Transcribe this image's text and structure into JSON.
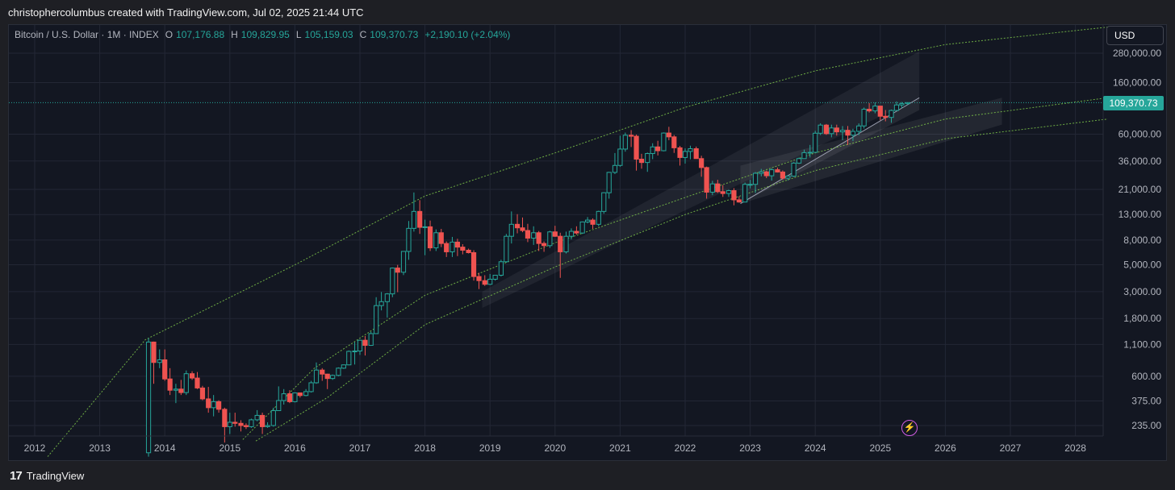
{
  "header": {
    "attribution": "christophercolumbus created with TradingView.com, Jul 02, 2025 21:44 UTC"
  },
  "legend": {
    "symbol": "Bitcoin / U.S. Dollar · 1M · INDEX",
    "open_label": "O",
    "open": "107,176.88",
    "high_label": "H",
    "high": "109,829.95",
    "low_label": "L",
    "low": "105,159.03",
    "close_label": "C",
    "close": "109,370.73",
    "change": "+2,190.10 (+2.04%)"
  },
  "currency": "USD",
  "last_price_label": "109,370.73",
  "footer": {
    "brand": "TradingView",
    "logo": "17"
  },
  "colors": {
    "up": "#26a69a",
    "down": "#ef5350",
    "curve": "#7ec74a",
    "background": "#131722",
    "grid": "#232735"
  },
  "icons": {
    "replay": "lightning-bolt-icon"
  },
  "chart_data": {
    "type": "candlestick",
    "scale": "log",
    "grid": true,
    "x_tick_labels": [
      "2012",
      "2013",
      "2014",
      "2015",
      "2016",
      "2017",
      "2018",
      "2019",
      "2020",
      "2021",
      "2022",
      "2023",
      "2024",
      "2025",
      "2026",
      "2027",
      "2028"
    ],
    "y_tick_labels": [
      "280,000.00",
      "160,000.00",
      "60,000.00",
      "36,000.00",
      "21,000.00",
      "13,000.00",
      "8,000.00",
      "5,000.00",
      "3,000.00",
      "1,800.00",
      "1,100.00",
      "600.00",
      "375.00",
      "235.00"
    ],
    "y_tick_values": [
      280000,
      160000,
      60000,
      36000,
      21000,
      13000,
      8000,
      5000,
      3000,
      1800,
      1100,
      600,
      375,
      235
    ],
    "ylim": [
      175,
      480000
    ],
    "xlim": [
      2011.8,
      2028.8
    ],
    "last_price": 109370.73,
    "candles": [
      {
        "t": 2013.75,
        "o": 140,
        "c": 1150,
        "h": 1240,
        "l": 130
      },
      {
        "t": 2013.83,
        "o": 1150,
        "c": 780,
        "h": 1160,
        "l": 520
      },
      {
        "t": 2013.92,
        "o": 780,
        "c": 820,
        "h": 1000,
        "l": 700
      },
      {
        "t": 2014.0,
        "o": 820,
        "c": 570,
        "h": 1000,
        "l": 550
      },
      {
        "t": 2014.08,
        "o": 570,
        "c": 460,
        "h": 700,
        "l": 420
      },
      {
        "t": 2014.17,
        "o": 460,
        "c": 470,
        "h": 520,
        "l": 360
      },
      {
        "t": 2014.25,
        "o": 470,
        "c": 440,
        "h": 560,
        "l": 420
      },
      {
        "t": 2014.33,
        "o": 440,
        "c": 630,
        "h": 670,
        "l": 420
      },
      {
        "t": 2014.42,
        "o": 630,
        "c": 580,
        "h": 660,
        "l": 560
      },
      {
        "t": 2014.5,
        "o": 580,
        "c": 480,
        "h": 650,
        "l": 470
      },
      {
        "t": 2014.58,
        "o": 480,
        "c": 390,
        "h": 500,
        "l": 380
      },
      {
        "t": 2014.67,
        "o": 390,
        "c": 330,
        "h": 490,
        "l": 300
      },
      {
        "t": 2014.75,
        "o": 330,
        "c": 370,
        "h": 420,
        "l": 280
      },
      {
        "t": 2014.83,
        "o": 370,
        "c": 320,
        "h": 380,
        "l": 300
      },
      {
        "t": 2014.92,
        "o": 320,
        "c": 230,
        "h": 330,
        "l": 170
      },
      {
        "t": 2015.0,
        "o": 230,
        "c": 250,
        "h": 300,
        "l": 200
      },
      {
        "t": 2015.08,
        "o": 250,
        "c": 245,
        "h": 300,
        "l": 230
      },
      {
        "t": 2015.17,
        "o": 245,
        "c": 235,
        "h": 260,
        "l": 210
      },
      {
        "t": 2015.25,
        "o": 235,
        "c": 230,
        "h": 245,
        "l": 220
      },
      {
        "t": 2015.33,
        "o": 230,
        "c": 262,
        "h": 268,
        "l": 225
      },
      {
        "t": 2015.42,
        "o": 262,
        "c": 285,
        "h": 315,
        "l": 255
      },
      {
        "t": 2015.5,
        "o": 285,
        "c": 230,
        "h": 300,
        "l": 200
      },
      {
        "t": 2015.58,
        "o": 230,
        "c": 235,
        "h": 250,
        "l": 225
      },
      {
        "t": 2015.67,
        "o": 235,
        "c": 312,
        "h": 330,
        "l": 230
      },
      {
        "t": 2015.75,
        "o": 312,
        "c": 378,
        "h": 495,
        "l": 310
      },
      {
        "t": 2015.83,
        "o": 378,
        "c": 430,
        "h": 470,
        "l": 350
      },
      {
        "t": 2015.92,
        "o": 430,
        "c": 370,
        "h": 460,
        "l": 360
      },
      {
        "t": 2016.0,
        "o": 370,
        "c": 437,
        "h": 440,
        "l": 365
      },
      {
        "t": 2016.08,
        "o": 437,
        "c": 416,
        "h": 440,
        "l": 400
      },
      {
        "t": 2016.17,
        "o": 416,
        "c": 448,
        "h": 470,
        "l": 410
      },
      {
        "t": 2016.25,
        "o": 448,
        "c": 530,
        "h": 550,
        "l": 440
      },
      {
        "t": 2016.33,
        "o": 530,
        "c": 675,
        "h": 780,
        "l": 520
      },
      {
        "t": 2016.42,
        "o": 675,
        "c": 625,
        "h": 700,
        "l": 550
      },
      {
        "t": 2016.5,
        "o": 625,
        "c": 575,
        "h": 630,
        "l": 470
      },
      {
        "t": 2016.58,
        "o": 575,
        "c": 610,
        "h": 620,
        "l": 560
      },
      {
        "t": 2016.67,
        "o": 610,
        "c": 700,
        "h": 710,
        "l": 600
      },
      {
        "t": 2016.75,
        "o": 700,
        "c": 745,
        "h": 750,
        "l": 690
      },
      {
        "t": 2016.83,
        "o": 745,
        "c": 963,
        "h": 980,
        "l": 740
      },
      {
        "t": 2016.92,
        "o": 963,
        "c": 970,
        "h": 1150,
        "l": 750
      },
      {
        "t": 2017.0,
        "o": 970,
        "c": 1190,
        "h": 1200,
        "l": 900
      },
      {
        "t": 2017.08,
        "o": 1190,
        "c": 1080,
        "h": 1290,
        "l": 890
      },
      {
        "t": 2017.17,
        "o": 1080,
        "c": 1350,
        "h": 1400,
        "l": 1070
      },
      {
        "t": 2017.25,
        "o": 1350,
        "c": 2300,
        "h": 2700,
        "l": 1350
      },
      {
        "t": 2017.33,
        "o": 2300,
        "c": 2480,
        "h": 2980,
        "l": 2100
      },
      {
        "t": 2017.42,
        "o": 2480,
        "c": 2875,
        "h": 2920,
        "l": 1830
      },
      {
        "t": 2017.5,
        "o": 2875,
        "c": 4700,
        "h": 4750,
        "l": 2700
      },
      {
        "t": 2017.58,
        "o": 4700,
        "c": 4340,
        "h": 4990,
        "l": 2970
      },
      {
        "t": 2017.67,
        "o": 4340,
        "c": 6450,
        "h": 6470,
        "l": 4110
      },
      {
        "t": 2017.75,
        "o": 6450,
        "c": 10000,
        "h": 11500,
        "l": 5500
      },
      {
        "t": 2017.83,
        "o": 10000,
        "c": 13800,
        "h": 19800,
        "l": 9400
      },
      {
        "t": 2017.92,
        "o": 13800,
        "c": 10200,
        "h": 17100,
        "l": 9000
      },
      {
        "t": 2018.0,
        "o": 10200,
        "c": 10300,
        "h": 11800,
        "l": 6000
      },
      {
        "t": 2018.08,
        "o": 10300,
        "c": 6900,
        "h": 11600,
        "l": 6500
      },
      {
        "t": 2018.17,
        "o": 6900,
        "c": 9200,
        "h": 9800,
        "l": 6500
      },
      {
        "t": 2018.25,
        "o": 9200,
        "c": 7500,
        "h": 9900,
        "l": 7000
      },
      {
        "t": 2018.33,
        "o": 7500,
        "c": 6400,
        "h": 7800,
        "l": 5800
      },
      {
        "t": 2018.42,
        "o": 6400,
        "c": 7700,
        "h": 8500,
        "l": 5800
      },
      {
        "t": 2018.5,
        "o": 7700,
        "c": 7000,
        "h": 8200,
        "l": 5900
      },
      {
        "t": 2018.58,
        "o": 7000,
        "c": 6600,
        "h": 7400,
        "l": 6100
      },
      {
        "t": 2018.67,
        "o": 6600,
        "c": 6300,
        "h": 6800,
        "l": 6200
      },
      {
        "t": 2018.75,
        "o": 6300,
        "c": 4000,
        "h": 6600,
        "l": 3700
      },
      {
        "t": 2018.83,
        "o": 4000,
        "c": 3700,
        "h": 4300,
        "l": 3150
      },
      {
        "t": 2018.92,
        "o": 3700,
        "c": 3450,
        "h": 4100,
        "l": 3350
      },
      {
        "t": 2019.0,
        "o": 3450,
        "c": 3800,
        "h": 4200,
        "l": 3400
      },
      {
        "t": 2019.08,
        "o": 3800,
        "c": 4100,
        "h": 4100,
        "l": 3700
      },
      {
        "t": 2019.17,
        "o": 4100,
        "c": 5300,
        "h": 5500,
        "l": 4000
      },
      {
        "t": 2019.25,
        "o": 5300,
        "c": 8600,
        "h": 9000,
        "l": 5200
      },
      {
        "t": 2019.33,
        "o": 8600,
        "c": 10800,
        "h": 13800,
        "l": 7500
      },
      {
        "t": 2019.42,
        "o": 10800,
        "c": 10100,
        "h": 13100,
        "l": 9100
      },
      {
        "t": 2019.5,
        "o": 10100,
        "c": 9600,
        "h": 12300,
        "l": 9300
      },
      {
        "t": 2019.58,
        "o": 9600,
        "c": 8300,
        "h": 10900,
        "l": 7700
      },
      {
        "t": 2019.67,
        "o": 8300,
        "c": 9200,
        "h": 10400,
        "l": 7300
      },
      {
        "t": 2019.75,
        "o": 9200,
        "c": 7500,
        "h": 9500,
        "l": 6500
      },
      {
        "t": 2019.83,
        "o": 7500,
        "c": 7200,
        "h": 7800,
        "l": 6400
      },
      {
        "t": 2019.92,
        "o": 7200,
        "c": 9350,
        "h": 9550,
        "l": 6900
      },
      {
        "t": 2020.0,
        "o": 9350,
        "c": 8600,
        "h": 10500,
        "l": 8500
      },
      {
        "t": 2020.08,
        "o": 8600,
        "c": 6400,
        "h": 9200,
        "l": 3900
      },
      {
        "t": 2020.17,
        "o": 6400,
        "c": 8600,
        "h": 9400,
        "l": 6200
      },
      {
        "t": 2020.25,
        "o": 8600,
        "c": 9450,
        "h": 10000,
        "l": 8100
      },
      {
        "t": 2020.33,
        "o": 9450,
        "c": 9150,
        "h": 10400,
        "l": 8900
      },
      {
        "t": 2020.42,
        "o": 9150,
        "c": 11300,
        "h": 11400,
        "l": 9000
      },
      {
        "t": 2020.5,
        "o": 11300,
        "c": 11700,
        "h": 12400,
        "l": 11000
      },
      {
        "t": 2020.58,
        "o": 11700,
        "c": 10800,
        "h": 12100,
        "l": 9900
      },
      {
        "t": 2020.67,
        "o": 10800,
        "c": 13800,
        "h": 14000,
        "l": 10400
      },
      {
        "t": 2020.75,
        "o": 13800,
        "c": 19700,
        "h": 19900,
        "l": 13200
      },
      {
        "t": 2020.83,
        "o": 19700,
        "c": 29000,
        "h": 29300,
        "l": 17600
      },
      {
        "t": 2020.92,
        "o": 29000,
        "c": 33100,
        "h": 41900,
        "l": 28100
      },
      {
        "t": 2021.0,
        "o": 33100,
        "c": 45200,
        "h": 58300,
        "l": 32300
      },
      {
        "t": 2021.08,
        "o": 45200,
        "c": 58800,
        "h": 61800,
        "l": 43000
      },
      {
        "t": 2021.17,
        "o": 58800,
        "c": 57700,
        "h": 64800,
        "l": 47000
      },
      {
        "t": 2021.25,
        "o": 57700,
        "c": 37300,
        "h": 59500,
        "l": 30000
      },
      {
        "t": 2021.33,
        "o": 37300,
        "c": 35000,
        "h": 41300,
        "l": 31100
      },
      {
        "t": 2021.42,
        "o": 35000,
        "c": 41500,
        "h": 42300,
        "l": 29300
      },
      {
        "t": 2021.5,
        "o": 41500,
        "c": 47100,
        "h": 50500,
        "l": 37300
      },
      {
        "t": 2021.58,
        "o": 47100,
        "c": 43800,
        "h": 52900,
        "l": 40000
      },
      {
        "t": 2021.67,
        "o": 43800,
        "c": 61300,
        "h": 62000,
        "l": 43300
      },
      {
        "t": 2021.75,
        "o": 61300,
        "c": 57000,
        "h": 69000,
        "l": 53500
      },
      {
        "t": 2021.83,
        "o": 57000,
        "c": 46300,
        "h": 59000,
        "l": 42000
      },
      {
        "t": 2021.92,
        "o": 46300,
        "c": 38500,
        "h": 48000,
        "l": 33000
      },
      {
        "t": 2022.0,
        "o": 38500,
        "c": 43200,
        "h": 45800,
        "l": 34300
      },
      {
        "t": 2022.08,
        "o": 43200,
        "c": 45500,
        "h": 48200,
        "l": 37200
      },
      {
        "t": 2022.17,
        "o": 45500,
        "c": 37700,
        "h": 47400,
        "l": 37600
      },
      {
        "t": 2022.25,
        "o": 37700,
        "c": 31800,
        "h": 39800,
        "l": 26700
      },
      {
        "t": 2022.33,
        "o": 31800,
        "c": 19900,
        "h": 32400,
        "l": 17600
      },
      {
        "t": 2022.42,
        "o": 19900,
        "c": 23300,
        "h": 24700,
        "l": 18800
      },
      {
        "t": 2022.5,
        "o": 23300,
        "c": 20100,
        "h": 25200,
        "l": 19600
      },
      {
        "t": 2022.58,
        "o": 20100,
        "c": 19400,
        "h": 22800,
        "l": 18200
      },
      {
        "t": 2022.67,
        "o": 19400,
        "c": 20500,
        "h": 20900,
        "l": 18200
      },
      {
        "t": 2022.75,
        "o": 20500,
        "c": 17200,
        "h": 21500,
        "l": 15500
      },
      {
        "t": 2022.83,
        "o": 17200,
        "c": 16500,
        "h": 18400,
        "l": 16300
      },
      {
        "t": 2022.92,
        "o": 16500,
        "c": 23100,
        "h": 23900,
        "l": 16500
      },
      {
        "t": 2023.0,
        "o": 23100,
        "c": 23100,
        "h": 25200,
        "l": 21400
      },
      {
        "t": 2023.08,
        "o": 23100,
        "c": 28500,
        "h": 29200,
        "l": 19600
      },
      {
        "t": 2023.17,
        "o": 28500,
        "c": 29300,
        "h": 31000,
        "l": 26900
      },
      {
        "t": 2023.25,
        "o": 29300,
        "c": 27200,
        "h": 30000,
        "l": 26000
      },
      {
        "t": 2023.33,
        "o": 27200,
        "c": 30500,
        "h": 31400,
        "l": 24800
      },
      {
        "t": 2023.42,
        "o": 30500,
        "c": 29200,
        "h": 31800,
        "l": 28900
      },
      {
        "t": 2023.5,
        "o": 29200,
        "c": 26000,
        "h": 30100,
        "l": 25300
      },
      {
        "t": 2023.58,
        "o": 26000,
        "c": 27000,
        "h": 27500,
        "l": 24900
      },
      {
        "t": 2023.67,
        "o": 27000,
        "c": 34600,
        "h": 35200,
        "l": 26600
      },
      {
        "t": 2023.75,
        "o": 34600,
        "c": 37700,
        "h": 38400,
        "l": 34100
      },
      {
        "t": 2023.83,
        "o": 37700,
        "c": 42200,
        "h": 44700,
        "l": 37600
      },
      {
        "t": 2023.92,
        "o": 42200,
        "c": 42500,
        "h": 48900,
        "l": 38500
      },
      {
        "t": 2024.0,
        "o": 42500,
        "c": 61100,
        "h": 64000,
        "l": 42000
      },
      {
        "t": 2024.08,
        "o": 61100,
        "c": 71300,
        "h": 73800,
        "l": 59000
      },
      {
        "t": 2024.17,
        "o": 71300,
        "c": 60600,
        "h": 72800,
        "l": 59200
      },
      {
        "t": 2024.25,
        "o": 60600,
        "c": 67500,
        "h": 71900,
        "l": 56500
      },
      {
        "t": 2024.33,
        "o": 67500,
        "c": 62700,
        "h": 71900,
        "l": 58400
      },
      {
        "t": 2024.42,
        "o": 62700,
        "c": 64600,
        "h": 70000,
        "l": 53500
      },
      {
        "t": 2024.5,
        "o": 64600,
        "c": 58900,
        "h": 70000,
        "l": 49000
      },
      {
        "t": 2024.58,
        "o": 58900,
        "c": 63300,
        "h": 66500,
        "l": 52600
      },
      {
        "t": 2024.67,
        "o": 63300,
        "c": 70200,
        "h": 73600,
        "l": 58900
      },
      {
        "t": 2024.75,
        "o": 70200,
        "c": 96400,
        "h": 99600,
        "l": 66800
      },
      {
        "t": 2024.83,
        "o": 96400,
        "c": 93400,
        "h": 108300,
        "l": 90500
      },
      {
        "t": 2024.92,
        "o": 93400,
        "c": 102400,
        "h": 109600,
        "l": 89300
      },
      {
        "t": 2025.0,
        "o": 102400,
        "c": 84400,
        "h": 102500,
        "l": 78200
      },
      {
        "t": 2025.08,
        "o": 84400,
        "c": 82500,
        "h": 95000,
        "l": 76600
      },
      {
        "t": 2025.17,
        "o": 82500,
        "c": 94200,
        "h": 95800,
        "l": 74500
      },
      {
        "t": 2025.25,
        "o": 94200,
        "c": 104600,
        "h": 111900,
        "l": 93400
      },
      {
        "t": 2025.33,
        "o": 104600,
        "c": 107200,
        "h": 110600,
        "l": 98200
      },
      {
        "t": 2025.42,
        "o": 107176.88,
        "c": 109370.73,
        "h": 109829.95,
        "l": 105159.03
      }
    ]
  }
}
